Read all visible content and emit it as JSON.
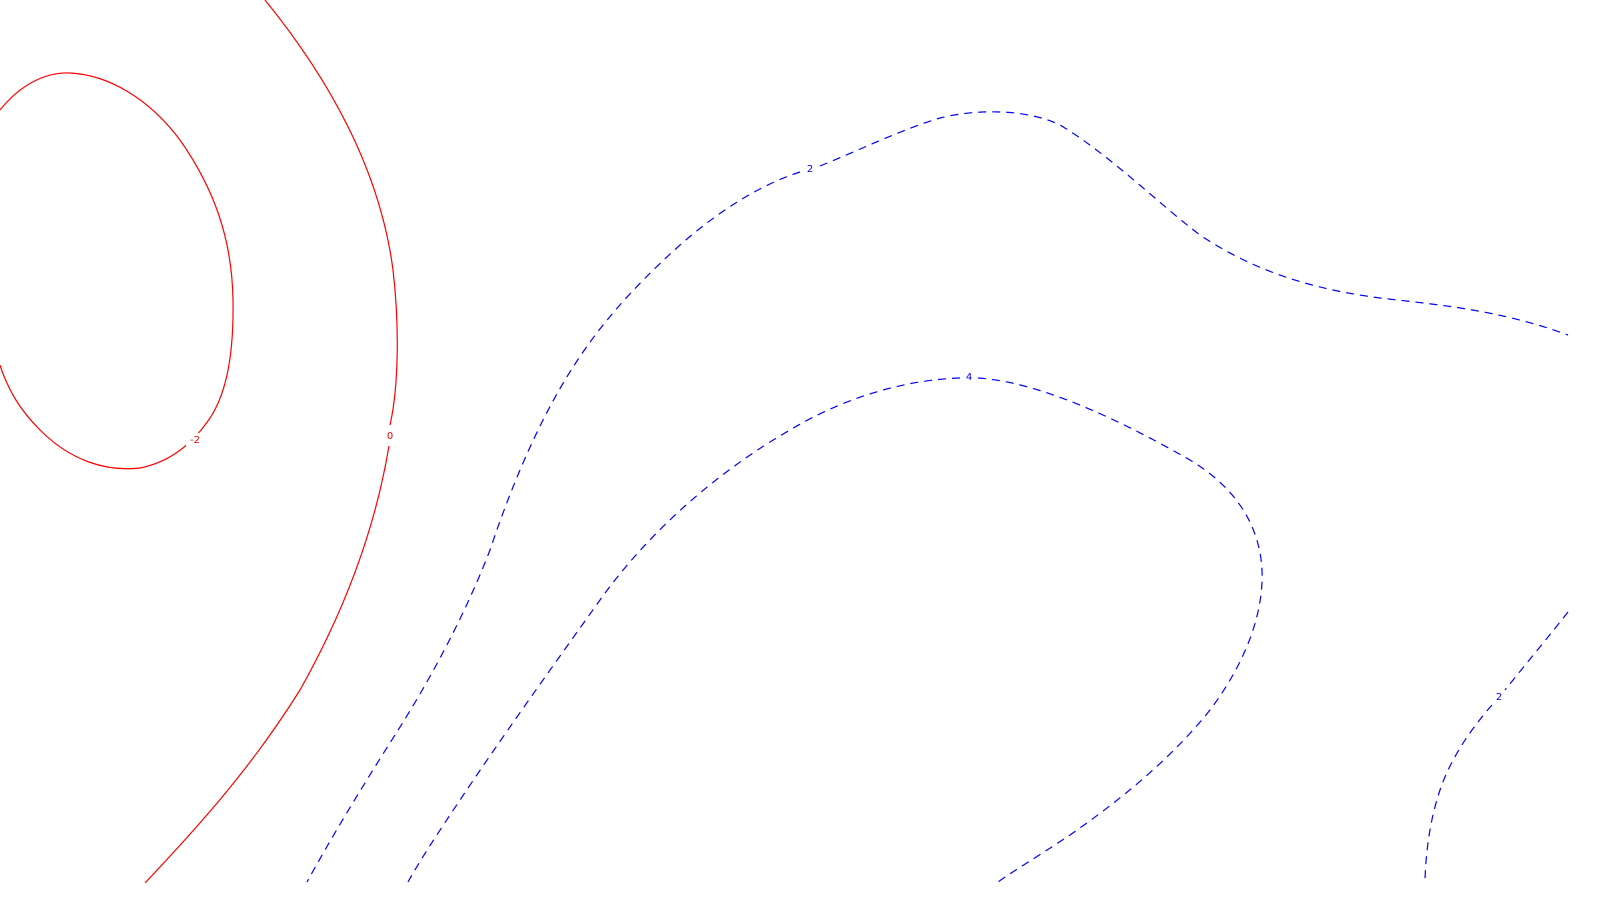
{
  "map": {
    "colors": {
      "background": "#ffffff",
      "red_contour": "#ff0000",
      "blue_contour": "#0000ff"
    },
    "contours": [
      {
        "id": "red-inner",
        "color": "#ff0000",
        "style": "solid",
        "label": "-2"
      },
      {
        "id": "red-outer",
        "color": "#ff0000",
        "style": "solid",
        "label": "0"
      },
      {
        "id": "blue-upper",
        "color": "#0000ff",
        "style": "dashed",
        "label": "2"
      },
      {
        "id": "blue-middle",
        "color": "#0000ff",
        "style": "dashed",
        "label": "4"
      },
      {
        "id": "blue-corner",
        "color": "#0000ff",
        "style": "dashed",
        "label": "2"
      }
    ]
  }
}
